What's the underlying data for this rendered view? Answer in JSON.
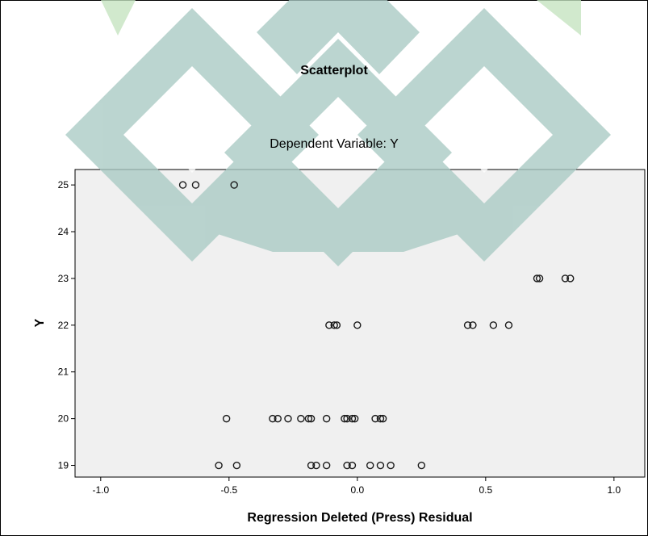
{
  "chart_data": {
    "type": "scatter",
    "title": "Scatterplot",
    "subtitle": "Dependent Variable: Y",
    "xlabel": "Regression Deleted (Press) Residual",
    "ylabel": "Y",
    "xlim": [
      -1.1,
      1.12
    ],
    "ylim": [
      18.75,
      25.33
    ],
    "xticks": [
      -1.0,
      -0.5,
      0.0,
      0.5,
      1.0
    ],
    "xtick_labels": [
      "-1.0",
      "-0.5",
      "0.0",
      "0.5",
      "1.0"
    ],
    "yticks": [
      19,
      20,
      21,
      22,
      23,
      24,
      25
    ],
    "ytick_labels": [
      "19",
      "20",
      "21",
      "22",
      "23",
      "24",
      "25"
    ],
    "grid": false,
    "points": [
      {
        "x": -0.68,
        "y": 25
      },
      {
        "x": -0.63,
        "y": 25
      },
      {
        "x": -0.48,
        "y": 25
      },
      {
        "x": 0.7,
        "y": 23
      },
      {
        "x": 0.71,
        "y": 23
      },
      {
        "x": 0.81,
        "y": 23
      },
      {
        "x": 0.83,
        "y": 23
      },
      {
        "x": -0.11,
        "y": 22
      },
      {
        "x": -0.09,
        "y": 22
      },
      {
        "x": -0.08,
        "y": 22
      },
      {
        "x": -0.0,
        "y": 22
      },
      {
        "x": 0.43,
        "y": 22
      },
      {
        "x": 0.45,
        "y": 22
      },
      {
        "x": 0.53,
        "y": 22
      },
      {
        "x": 0.59,
        "y": 22
      },
      {
        "x": -0.51,
        "y": 20
      },
      {
        "x": -0.33,
        "y": 20
      },
      {
        "x": -0.31,
        "y": 20
      },
      {
        "x": -0.27,
        "y": 20
      },
      {
        "x": -0.22,
        "y": 20
      },
      {
        "x": -0.19,
        "y": 20
      },
      {
        "x": -0.18,
        "y": 20
      },
      {
        "x": -0.12,
        "y": 20
      },
      {
        "x": -0.05,
        "y": 20
      },
      {
        "x": -0.04,
        "y": 20
      },
      {
        "x": -0.02,
        "y": 20
      },
      {
        "x": -0.01,
        "y": 20
      },
      {
        "x": 0.07,
        "y": 20
      },
      {
        "x": 0.09,
        "y": 20
      },
      {
        "x": 0.1,
        "y": 20
      },
      {
        "x": -0.54,
        "y": 19
      },
      {
        "x": -0.47,
        "y": 19
      },
      {
        "x": -0.18,
        "y": 19
      },
      {
        "x": -0.16,
        "y": 19
      },
      {
        "x": -0.12,
        "y": 19
      },
      {
        "x": -0.04,
        "y": 19
      },
      {
        "x": -0.02,
        "y": 19
      },
      {
        "x": 0.05,
        "y": 19
      },
      {
        "x": 0.09,
        "y": 19
      },
      {
        "x": 0.13,
        "y": 19
      },
      {
        "x": 0.25,
        "y": 19
      }
    ],
    "colors": {
      "plot_background": "#f0f0f0",
      "marker_stroke": "#1a1a1a",
      "watermark": "#a9cac4",
      "watermark_light": "#c5e4c0"
    }
  }
}
